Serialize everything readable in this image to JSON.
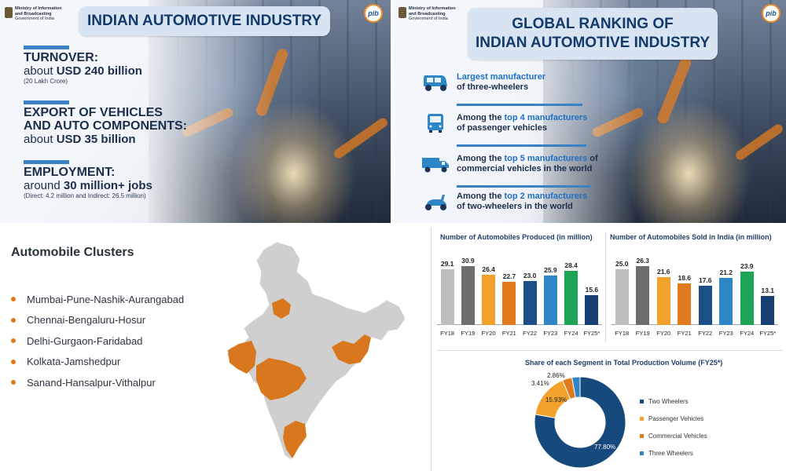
{
  "header": {
    "ministry_line1": "Ministry of Information",
    "ministry_line2": "and Broadcasting",
    "ministry_line3": "Government of India",
    "pib_logo": "pib"
  },
  "left_panel": {
    "title": "INDIAN AUTOMOTIVE INDUSTRY",
    "stats": [
      {
        "label": "TURNOVER:",
        "value_prefix": "about ",
        "value_bold": "USD 240 billion",
        "note": "(20 Lakh Crore)"
      },
      {
        "label": "EXPORT OF VEHICLES",
        "label2": "AND AUTO COMPONENTS:",
        "value_prefix": "about ",
        "value_bold": "USD 35 billion",
        "note": ""
      },
      {
        "label": "EMPLOYMENT:",
        "value_prefix": "around ",
        "value_bold": "30 million+ jobs",
        "note": "(Direct: 4.2 million and Indirect: 26.5 million)"
      }
    ]
  },
  "right_panel": {
    "title_line1": "GLOBAL RANKING OF",
    "title_line2": "INDIAN AUTOMOTIVE INDUSTRY",
    "rankings": [
      {
        "icon": "auto-rickshaw-icon",
        "pre": "",
        "highlight": "Largest manufacturer",
        "mid": "",
        "line2": "of three-wheelers"
      },
      {
        "icon": "bus-icon",
        "pre": "Among the ",
        "highlight": "top 4 manufacturers",
        "mid": "",
        "line2": "of passenger vehicles"
      },
      {
        "icon": "truck-icon",
        "pre": "Among the ",
        "highlight": "top 5 manufacturers",
        "mid": " of",
        "line2": "commercial vehicles in the world"
      },
      {
        "icon": "scooter-icon",
        "pre": "Among the ",
        "highlight": "top 2 manufacturers",
        "mid": "",
        "line2": "of two-wheelers in the world"
      }
    ]
  },
  "clusters": {
    "title": "Automobile Clusters",
    "items": [
      "Mumbai-Pune-Nashik-Aurangabad",
      "Chennai-Bengaluru-Hosur",
      "Delhi-Gurgaon-Faridabad",
      "Kolkata-Jamshedpur",
      "Sanand-Hansalpur-Vithalpur"
    ],
    "map_base_color": "#cfcfcf",
    "map_cluster_color": "#d9771f"
  },
  "chart_data": [
    {
      "type": "bar",
      "title": "Number of Automobiles Produced (in million)",
      "categories": [
        "FY18",
        "FY19",
        "FY20",
        "FY21",
        "FY22",
        "FY23",
        "FY24",
        "FY25*"
      ],
      "values": [
        29.1,
        30.9,
        26.4,
        22.7,
        23.0,
        25.9,
        28.4,
        15.6
      ],
      "colors": [
        "#bdbdbd",
        "#6e6e6e",
        "#f2a22c",
        "#e07a1c",
        "#1c4f86",
        "#2e86c7",
        "#1ea454",
        "#173e73"
      ],
      "ylim": [
        0,
        32
      ]
    },
    {
      "type": "bar",
      "title": "Number of Automobiles Sold in India (in million)",
      "categories": [
        "FY18",
        "FY19",
        "FY20",
        "FY21",
        "FY22",
        "FY23",
        "FY24",
        "FY25*"
      ],
      "values": [
        25.0,
        26.3,
        21.6,
        18.6,
        17.6,
        21.2,
        23.9,
        13.1
      ],
      "colors": [
        "#bdbdbd",
        "#6e6e6e",
        "#f2a22c",
        "#e07a1c",
        "#1c4f86",
        "#2e86c7",
        "#1ea454",
        "#173e73"
      ],
      "ylim": [
        0,
        27.5
      ]
    },
    {
      "type": "pie",
      "title": "Share of each Segment in Total Production Volume (FY25*)",
      "labels": [
        "Two Wheelers",
        "Passenger Vehicles",
        "Commercial Vehicles",
        "Three Wheelers"
      ],
      "values": [
        77.8,
        15.93,
        3.41,
        2.86
      ],
      "value_labels": [
        "77.80%",
        "15.93%",
        "3.41%",
        "2.86%"
      ],
      "colors": [
        "#174a7c",
        "#f2a22c",
        "#e07a1c",
        "#2e86c7"
      ],
      "legend": "right"
    }
  ]
}
